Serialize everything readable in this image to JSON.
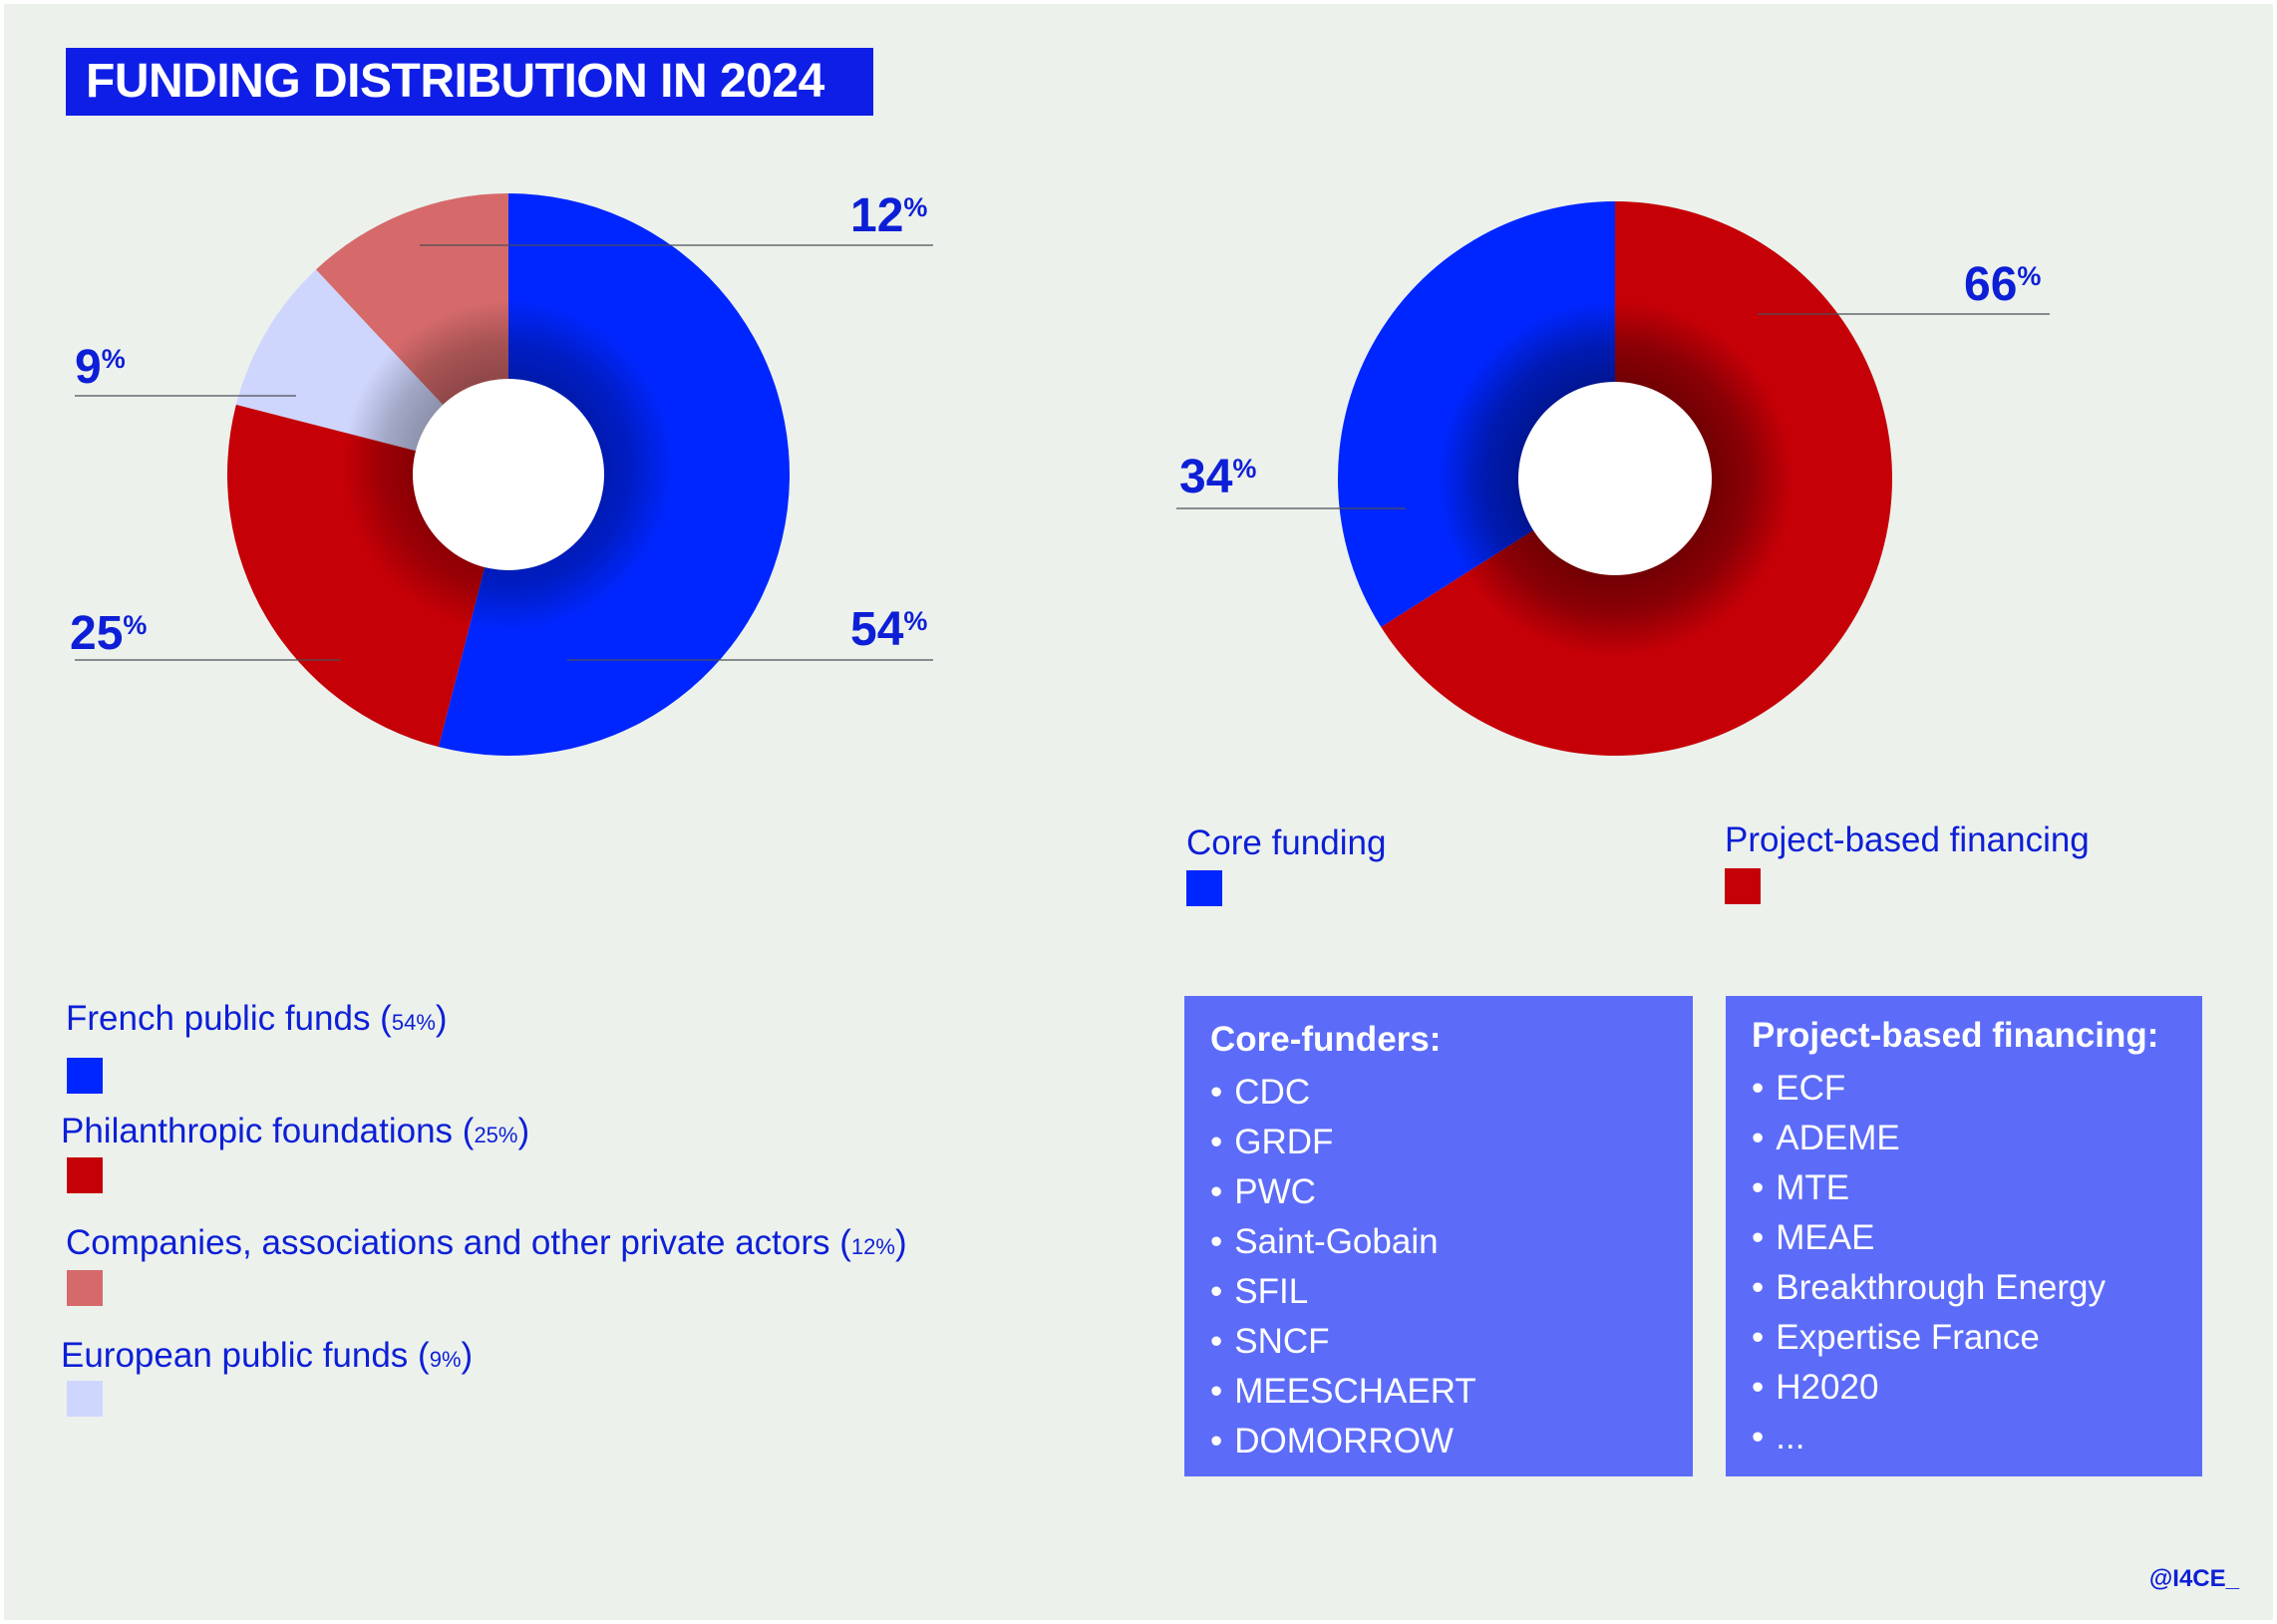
{
  "title": "FUNDING DISTRIBUTION IN 2024",
  "credit": "@I4CE_",
  "percent_sign": "%",
  "chart_data": [
    {
      "type": "pie",
      "variant": "donut",
      "title": "",
      "series": [
        {
          "name": "French public funds",
          "value": 54,
          "label": "54",
          "color": "#0026ff"
        },
        {
          "name": "Philanthropic foundations",
          "value": 25,
          "label": "25",
          "color": "#c50007"
        },
        {
          "name": "European public funds",
          "value": 9,
          "label": "9",
          "color": "#cfd6fd"
        },
        {
          "name": "Companies, associations and other private actors",
          "value": 12,
          "label": "12",
          "color": "#d66a6b"
        }
      ]
    },
    {
      "type": "pie",
      "variant": "donut",
      "title": "",
      "series": [
        {
          "name": "Project-based financing",
          "value": 66,
          "label": "66",
          "color": "#c50007"
        },
        {
          "name": "Core funding",
          "value": 34,
          "label": "34",
          "color": "#0026ff"
        }
      ]
    }
  ],
  "legend_left": [
    {
      "label": "French public funds (",
      "value": "54",
      "suffix": ")",
      "color": "#0026ff"
    },
    {
      "label": "Philanthropic foundations (",
      "value": "25",
      "suffix": ")",
      "color": "#c50007"
    },
    {
      "label": "Companies, associations and other private actors (",
      "value": "12",
      "suffix": ")",
      "color": "#d66a6b"
    },
    {
      "label": "European public funds (",
      "value": "9",
      "suffix": ")",
      "color": "#cfd6fd"
    }
  ],
  "legend_right": [
    {
      "label": "Core funding",
      "color": "#0026ff"
    },
    {
      "label": "Project-based financing",
      "color": "#c50007"
    }
  ],
  "core_funders": {
    "title": "Core-funders:",
    "items": [
      "CDC",
      "GRDF",
      "PWC",
      "Saint-Gobain",
      "SFIL",
      "SNCF",
      "MEESCHAERT",
      "DOMORROW"
    ]
  },
  "project_financing": {
    "title": "Project-based financing:",
    "items": [
      "ECF",
      "ADEME",
      "MTE",
      "MEAE",
      "Breakthrough Energy",
      "Expertise France",
      "H2020",
      "..."
    ]
  }
}
